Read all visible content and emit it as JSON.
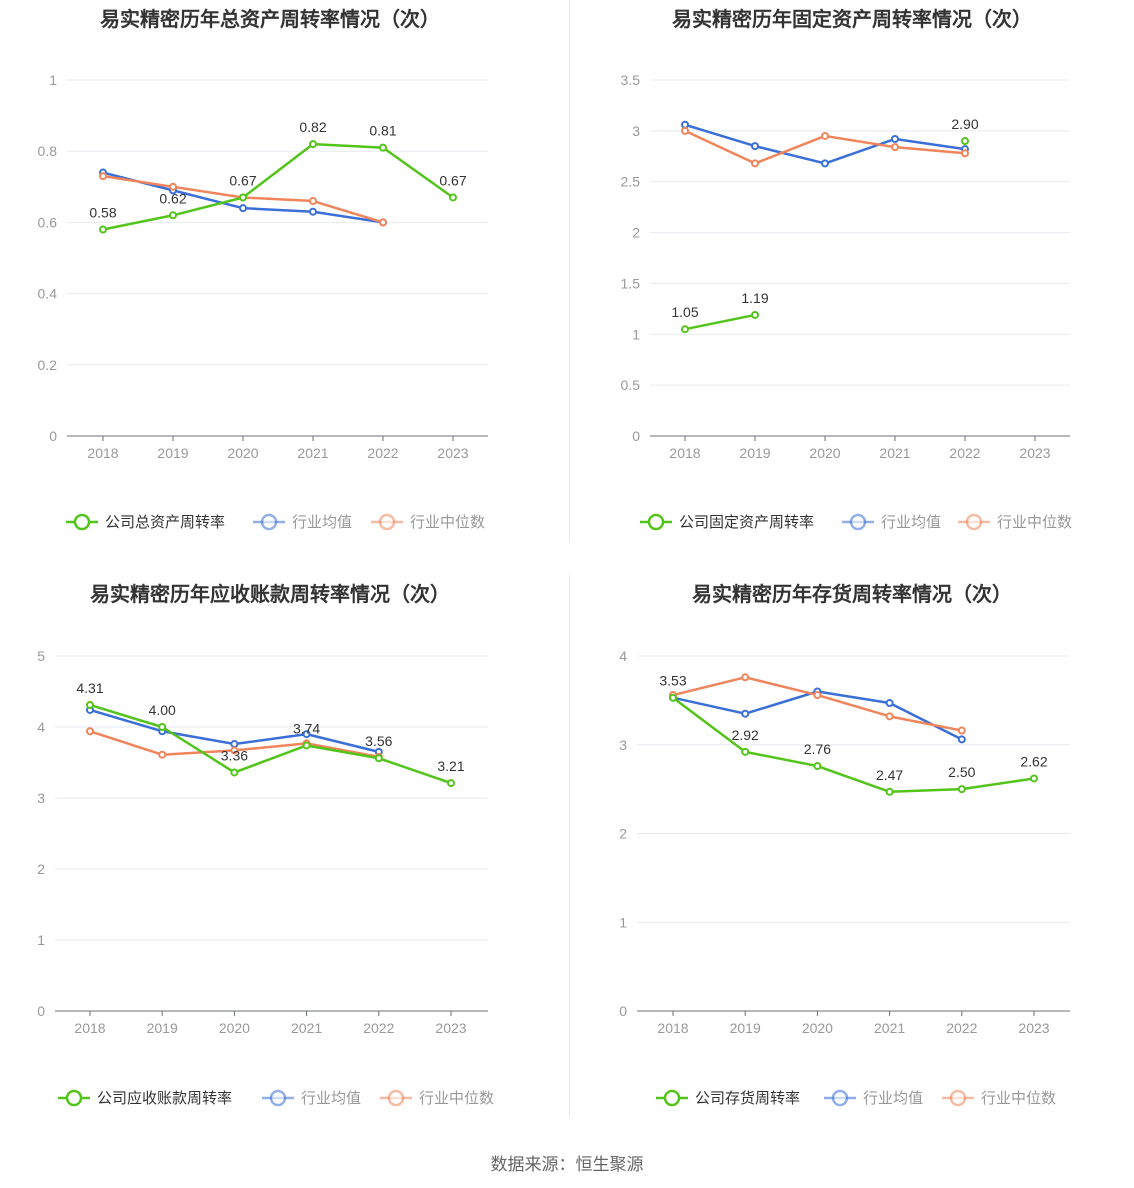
{
  "source_text": "数据来源：恒生聚源",
  "colors": {
    "company": "#52c41a",
    "avg": "#3b6fd8",
    "median": "#f0845b"
  },
  "chart_data": [
    {
      "type": "line",
      "title": "易实精密历年总资产周转率情况（次）",
      "x": [
        "2018",
        "2019",
        "2020",
        "2021",
        "2022",
        "2023"
      ],
      "yticks": [
        "0",
        "0.2",
        "0.4",
        "0.6",
        "0.8",
        "1"
      ],
      "ylim": [
        0,
        1
      ],
      "grid": true,
      "legend_position": "bottom",
      "series": [
        {
          "name": "公司总资产周转率",
          "values": [
            0.58,
            0.62,
            0.67,
            0.82,
            0.81,
            0.67
          ],
          "labels": [
            "0.58",
            "0.62",
            "0.67",
            "0.82",
            "0.81",
            "0.67"
          ]
        },
        {
          "name": "行业均值",
          "values": [
            0.74,
            0.69,
            0.64,
            0.63,
            0.6,
            null
          ]
        },
        {
          "name": "行业中位数",
          "values": [
            0.73,
            0.7,
            0.67,
            0.66,
            0.6,
            null
          ]
        }
      ]
    },
    {
      "type": "line",
      "title": "易实精密历年固定资产周转率情况（次）",
      "x": [
        "2018",
        "2019",
        "2020",
        "2021",
        "2022",
        "2023"
      ],
      "yticks": [
        "0",
        "0.5",
        "1",
        "1.5",
        "2",
        "2.5",
        "3",
        "3.5"
      ],
      "ylim": [
        0,
        3.5
      ],
      "grid": true,
      "legend_position": "bottom",
      "series": [
        {
          "name": "公司固定资产周转率",
          "values": [
            1.05,
            1.19,
            null,
            null,
            2.9,
            null
          ],
          "labels": [
            "1.05",
            "1.19",
            null,
            null,
            "2.90",
            null
          ]
        },
        {
          "name": "行业均值",
          "values": [
            3.06,
            2.85,
            2.68,
            2.92,
            2.82,
            null
          ]
        },
        {
          "name": "行业中位数",
          "values": [
            3.0,
            2.68,
            2.95,
            2.84,
            2.78,
            null
          ]
        }
      ]
    },
    {
      "type": "line",
      "title": "易实精密历年应收账款周转率情况（次）",
      "x": [
        "2018",
        "2019",
        "2020",
        "2021",
        "2022",
        "2023"
      ],
      "yticks": [
        "0",
        "1",
        "2",
        "3",
        "4",
        "5"
      ],
      "ylim": [
        0,
        5
      ],
      "grid": true,
      "legend_position": "bottom",
      "series": [
        {
          "name": "公司应收账款周转率",
          "values": [
            4.31,
            4.0,
            3.36,
            3.74,
            3.56,
            3.21
          ],
          "labels": [
            "4.31",
            "4.00",
            "3.36",
            "3.74",
            "3.56",
            "3.21"
          ]
        },
        {
          "name": "行业均值",
          "values": [
            4.24,
            3.94,
            3.76,
            3.9,
            3.65,
            null
          ]
        },
        {
          "name": "行业中位数",
          "values": [
            3.94,
            3.61,
            3.67,
            3.77,
            3.58,
            null
          ]
        }
      ]
    },
    {
      "type": "line",
      "title": "易实精密历年存货周转率情况（次）",
      "x": [
        "2018",
        "2019",
        "2020",
        "2021",
        "2022",
        "2023"
      ],
      "yticks": [
        "0",
        "1",
        "2",
        "3",
        "4"
      ],
      "ylim": [
        0,
        4
      ],
      "grid": true,
      "legend_position": "bottom",
      "series": [
        {
          "name": "公司存货周转率",
          "values": [
            3.53,
            2.92,
            2.76,
            2.47,
            2.5,
            2.62
          ],
          "labels": [
            "3.53",
            "2.92",
            "2.76",
            "2.47",
            "2.50",
            "2.62"
          ]
        },
        {
          "name": "行业均值",
          "values": [
            3.53,
            3.35,
            3.6,
            3.47,
            3.06,
            null
          ]
        },
        {
          "name": "行业中位数",
          "values": [
            3.56,
            3.76,
            3.56,
            3.32,
            3.16,
            null
          ]
        }
      ]
    }
  ]
}
